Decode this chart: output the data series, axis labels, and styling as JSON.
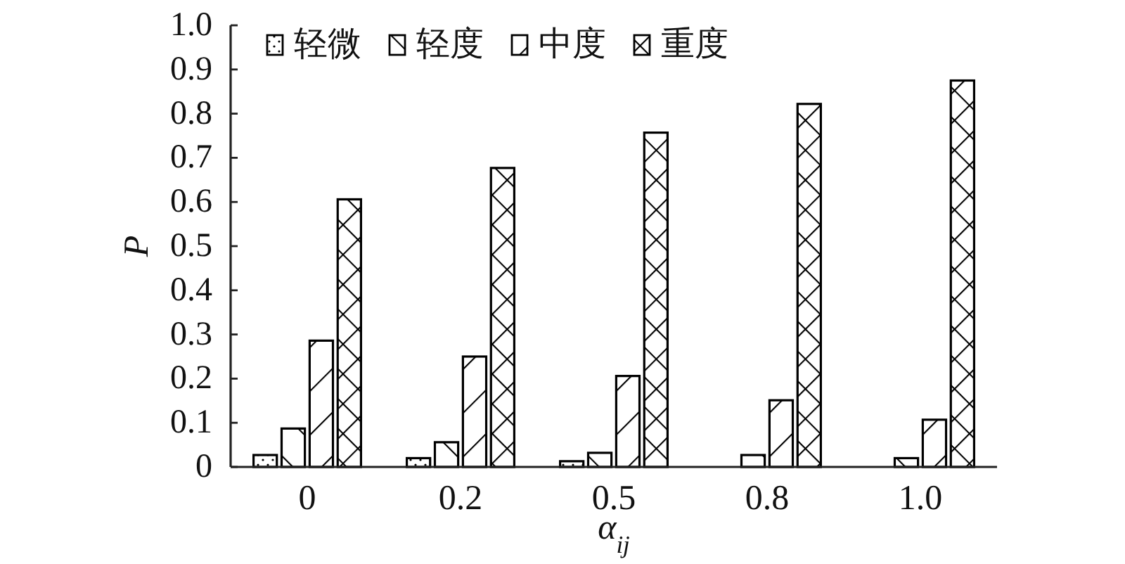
{
  "chart_data": {
    "type": "bar",
    "xlabel": "α$_{ij}$",
    "ylabel": "P",
    "categories": [
      "0",
      "0.2",
      "0.5",
      "0.8",
      "1.0"
    ],
    "series": [
      {
        "name": "轻微",
        "color": "#000000",
        "values": [
          0.027,
          0.02,
          0.013,
          0,
          0
        ]
      },
      {
        "name": "轻度",
        "color": "#000000",
        "values": [
          0.087,
          0.056,
          0.032,
          0.027,
          0.02
        ]
      },
      {
        "name": "中度",
        "color": "#000000",
        "values": [
          0.286,
          0.25,
          0.206,
          0.151,
          0.107
        ]
      },
      {
        "name": "重度",
        "color": "#000000",
        "values": [
          0.606,
          0.677,
          0.757,
          0.822,
          0.875
        ]
      }
    ],
    "ylim": [
      0,
      1
    ],
    "yticks": [
      0,
      0.1,
      0.2,
      0.3,
      0.4,
      0.5,
      0.6,
      0.7,
      0.8,
      0.9,
      {
        "value": 1,
        "label": "1.0"
      }
    ],
    "legend": "top left"
  }
}
